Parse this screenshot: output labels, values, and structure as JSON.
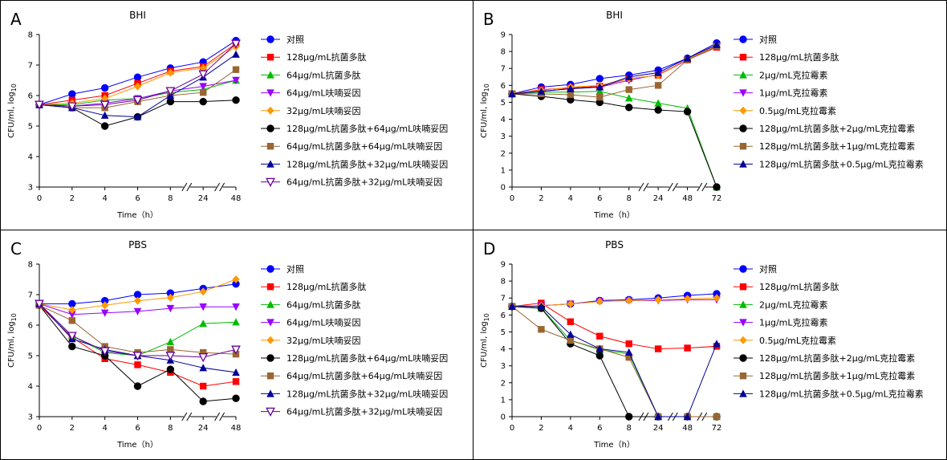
{
  "chart_data": [
    {
      "panel": "A",
      "type": "line",
      "title": "BHI",
      "xlabel": "Time（h）",
      "ylabel": "CFU/ml, log",
      "ylabel_sub": "10",
      "x": [
        0,
        2,
        4,
        6,
        8,
        24,
        48
      ],
      "x_tick_labels": [
        "0",
        "2",
        "4",
        "6",
        "8",
        "24",
        "48"
      ],
      "ylim": [
        3,
        8
      ],
      "y_ticks": [
        3,
        4,
        5,
        6,
        7,
        8
      ],
      "grid": false,
      "legend_position": "right",
      "series": [
        {
          "name": "对照",
          "color": "#0000ff",
          "marker": "circle",
          "values": [
            5.7,
            6.05,
            6.25,
            6.6,
            6.9,
            7.1,
            7.8
          ]
        },
        {
          "name": "128μg/mL抗菌多肽",
          "color": "#ff0000",
          "marker": "square",
          "values": [
            5.7,
            5.85,
            6.0,
            6.4,
            6.8,
            6.95,
            7.7
          ]
        },
        {
          "name": "64μg/mL抗菌多肽",
          "color": "#00bb00",
          "marker": "triangle",
          "values": [
            5.7,
            5.7,
            5.85,
            5.9,
            6.1,
            6.2,
            6.5
          ]
        },
        {
          "name": "64μg/mL呋喃妥因",
          "color": "#9900ff",
          "marker": "triangle-down",
          "values": [
            5.7,
            5.65,
            5.75,
            5.9,
            6.15,
            6.3,
            6.5
          ]
        },
        {
          "name": "32μg/mL呋喃妥因",
          "color": "#ff9900",
          "marker": "diamond",
          "values": [
            5.7,
            5.75,
            5.9,
            6.3,
            6.75,
            6.9,
            7.6
          ]
        },
        {
          "name": "128μg/mL抗菌多肽+64μg/mL呋喃妥因",
          "color": "#000000",
          "marker": "circle",
          "values": [
            5.7,
            5.6,
            5.0,
            5.3,
            5.8,
            5.8,
            5.85
          ]
        },
        {
          "name": "64μg/mL抗菌多肽+64μg/mL呋喃妥因",
          "color": "#996633",
          "marker": "square",
          "values": [
            5.7,
            5.6,
            5.6,
            5.8,
            6.0,
            6.1,
            6.85
          ]
        },
        {
          "name": "128μg/mL抗菌多肽+32μg/mL呋喃妥因",
          "color": "#000099",
          "marker": "triangle",
          "values": [
            5.7,
            5.6,
            5.35,
            5.3,
            6.0,
            6.6,
            7.35
          ]
        },
        {
          "name": "64μg/mL抗菌多肽+32μg/mL呋喃妥因",
          "color": "#660099",
          "marker": "triangle-down-open",
          "values": [
            5.7,
            5.65,
            5.7,
            5.85,
            6.15,
            6.7,
            7.7
          ]
        }
      ]
    },
    {
      "panel": "B",
      "type": "line",
      "title": "BHI",
      "xlabel": "Time（h）",
      "ylabel": "CFU/ml, log",
      "ylabel_sub": "10",
      "x": [
        0,
        2,
        4,
        6,
        8,
        24,
        48,
        72
      ],
      "x_tick_labels": [
        "0",
        "2",
        "4",
        "6",
        "8",
        "24",
        "48",
        "72"
      ],
      "ylim": [
        0,
        9
      ],
      "y_ticks": [
        0,
        1,
        2,
        3,
        4,
        5,
        6,
        7,
        8,
        9
      ],
      "grid": false,
      "legend_position": "right",
      "series": [
        {
          "name": "对照",
          "color": "#0000ff",
          "marker": "circle",
          "values": [
            5.5,
            5.9,
            6.05,
            6.4,
            6.6,
            6.9,
            7.6,
            8.5
          ]
        },
        {
          "name": "128μg/mL抗菌多肽",
          "color": "#ff0000",
          "marker": "square",
          "values": [
            5.5,
            5.75,
            5.85,
            5.95,
            6.4,
            6.6,
            7.5,
            8.25
          ]
        },
        {
          "name": "2μg/mL克拉霉素",
          "color": "#00bb00",
          "marker": "triangle",
          "values": [
            5.5,
            5.6,
            5.6,
            5.65,
            5.25,
            4.95,
            4.65,
            0
          ]
        },
        {
          "name": "1μg/mL克拉霉素",
          "color": "#9900ff",
          "marker": "triangle-down",
          "values": [
            5.5,
            5.65,
            5.8,
            5.9,
            6.3,
            6.65,
            7.5,
            8.3
          ]
        },
        {
          "name": "0.5μg/mL克拉霉素",
          "color": "#ff9900",
          "marker": "diamond",
          "values": [
            5.5,
            5.7,
            5.9,
            6.0,
            6.4,
            6.6,
            7.55,
            8.35
          ]
        },
        {
          "name": "128μg/mL抗菌多肽+2μg/mL克拉霉素",
          "color": "#000000",
          "marker": "circle",
          "values": [
            5.5,
            5.35,
            5.15,
            5.0,
            4.7,
            4.55,
            4.45,
            0
          ]
        },
        {
          "name": "128μg/mL抗菌多肽+1μg/mL克拉霉素",
          "color": "#996633",
          "marker": "square",
          "values": [
            5.5,
            5.5,
            5.45,
            5.3,
            5.75,
            6.0,
            7.5,
            8.3
          ]
        },
        {
          "name": "128μg/mL抗菌多肽+0.5μg/mL克拉霉素",
          "color": "#000099",
          "marker": "triangle",
          "values": [
            5.5,
            5.65,
            5.8,
            5.9,
            6.5,
            6.75,
            7.6,
            8.4
          ]
        }
      ]
    },
    {
      "panel": "C",
      "type": "line",
      "title": "PBS",
      "xlabel": "Time（h）",
      "ylabel": "CFU/ml, log",
      "ylabel_sub": "10",
      "x": [
        0,
        2,
        4,
        6,
        8,
        24,
        48
      ],
      "x_tick_labels": [
        "0",
        "2",
        "4",
        "6",
        "8",
        "24",
        "48"
      ],
      "ylim": [
        3,
        8
      ],
      "y_ticks": [
        3,
        4,
        5,
        6,
        7,
        8
      ],
      "grid": false,
      "legend_position": "right",
      "series": [
        {
          "name": "对照",
          "color": "#0000ff",
          "marker": "circle",
          "values": [
            6.7,
            6.7,
            6.8,
            7.0,
            7.05,
            7.2,
            7.35
          ]
        },
        {
          "name": "128μg/mL抗菌多肽",
          "color": "#ff0000",
          "marker": "square",
          "values": [
            6.65,
            5.6,
            4.9,
            4.7,
            4.45,
            4.0,
            4.15
          ]
        },
        {
          "name": "64μg/mL抗菌多肽",
          "color": "#00bb00",
          "marker": "triangle",
          "values": [
            6.7,
            5.65,
            5.1,
            5.0,
            5.45,
            6.05,
            6.1
          ]
        },
        {
          "name": "64μg/mL呋喃妥因",
          "color": "#9900ff",
          "marker": "triangle-down",
          "values": [
            6.7,
            6.35,
            6.4,
            6.45,
            6.55,
            6.6,
            6.6
          ]
        },
        {
          "name": "32μg/mL呋喃妥因",
          "color": "#ff9900",
          "marker": "diamond",
          "values": [
            6.7,
            6.5,
            6.65,
            6.8,
            6.9,
            7.1,
            7.5
          ]
        },
        {
          "name": "128μg/mL抗菌多肽+64μg/mL呋喃妥因",
          "color": "#000000",
          "marker": "circle",
          "values": [
            6.65,
            5.3,
            5.0,
            4.0,
            4.55,
            3.5,
            3.6
          ]
        },
        {
          "name": "64μg/mL抗菌多肽+64μg/mL呋喃妥因",
          "color": "#996633",
          "marker": "square",
          "values": [
            6.65,
            6.15,
            5.3,
            5.1,
            5.2,
            5.1,
            5.05
          ]
        },
        {
          "name": "128μg/mL抗菌多肽+32μg/mL呋喃妥因",
          "color": "#000099",
          "marker": "triangle",
          "values": [
            6.7,
            5.55,
            5.2,
            5.0,
            4.85,
            4.6,
            4.45
          ]
        },
        {
          "name": "64μg/mL抗菌多肽+32μg/mL呋喃妥因",
          "color": "#660099",
          "marker": "triangle-down-open",
          "values": [
            6.7,
            5.65,
            5.15,
            5.0,
            5.0,
            4.95,
            5.2
          ]
        }
      ]
    },
    {
      "panel": "D",
      "type": "line",
      "title": "PBS",
      "xlabel": "Time（h）",
      "ylabel": "CFU/ml, log",
      "ylabel_sub": "10",
      "x": [
        0,
        2,
        4,
        6,
        8,
        24,
        48,
        72
      ],
      "x_tick_labels": [
        "0",
        "2",
        "4",
        "6",
        "8",
        "24",
        "48",
        "72"
      ],
      "ylim": [
        0,
        9
      ],
      "y_ticks": [
        0,
        1,
        2,
        3,
        4,
        5,
        6,
        7,
        8,
        9
      ],
      "grid": false,
      "legend_position": "right",
      "series": [
        {
          "name": "对照",
          "color": "#0000ff",
          "marker": "circle",
          "values": [
            6.5,
            6.55,
            6.65,
            6.85,
            6.9,
            7.0,
            7.15,
            7.25
          ]
        },
        {
          "name": "128μg/mL抗菌多肽",
          "color": "#ff0000",
          "marker": "square",
          "values": [
            6.5,
            6.7,
            5.6,
            4.75,
            4.3,
            4.0,
            4.05,
            4.15
          ]
        },
        {
          "name": "2μg/mL克拉霉素",
          "color": "#00bb00",
          "marker": "triangle",
          "values": [
            6.5,
            6.4,
            4.5,
            3.95,
            3.7,
            0,
            0,
            0
          ]
        },
        {
          "name": "1μg/mL克拉霉素",
          "color": "#9900ff",
          "marker": "triangle-down",
          "values": [
            6.5,
            6.55,
            6.65,
            6.8,
            6.85,
            6.85,
            6.9,
            6.9
          ]
        },
        {
          "name": "0.5μg/mL克拉霉素",
          "color": "#ff9900",
          "marker": "diamond",
          "values": [
            6.5,
            6.55,
            6.65,
            6.8,
            6.85,
            6.9,
            6.95,
            7.0
          ]
        },
        {
          "name": "128μg/mL抗菌多肽+2μg/mL克拉霉素",
          "color": "#000000",
          "marker": "circle",
          "values": [
            6.5,
            6.4,
            4.3,
            3.6,
            0,
            0,
            0,
            0
          ]
        },
        {
          "name": "128μg/mL抗菌多肽+1μg/mL克拉霉素",
          "color": "#996633",
          "marker": "square",
          "values": [
            6.5,
            5.15,
            4.5,
            4.0,
            3.5,
            0,
            0,
            0
          ]
        },
        {
          "name": "128μg/mL抗菌多肽+0.5μg/mL克拉霉素",
          "color": "#000099",
          "marker": "triangle",
          "values": [
            6.5,
            6.5,
            4.85,
            4.0,
            3.8,
            0,
            0,
            4.3
          ]
        }
      ]
    }
  ]
}
